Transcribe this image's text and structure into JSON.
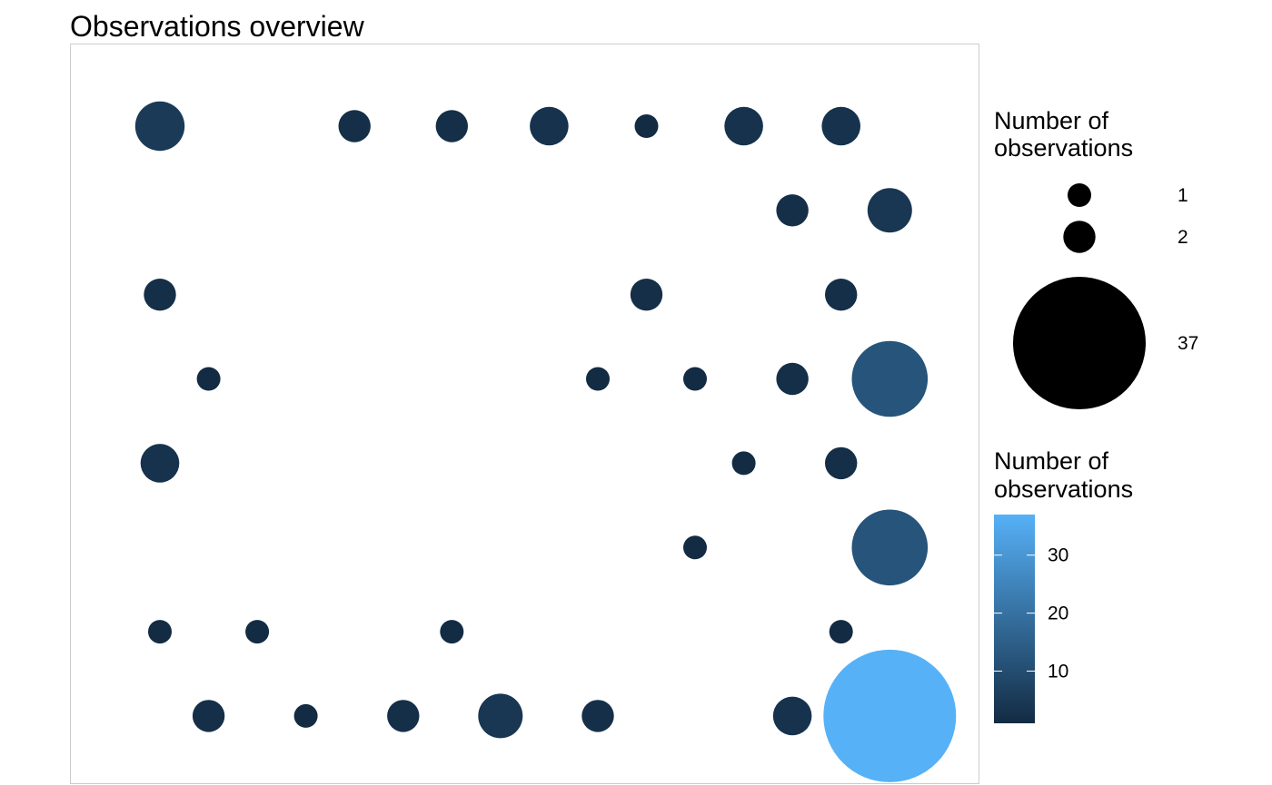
{
  "chart_data": {
    "type": "scatter",
    "title": "Observations overview",
    "xlabel": "",
    "ylabel": "",
    "grid": false,
    "legend_position": "right",
    "size_legend": {
      "title_lines": [
        "Number of",
        "observations"
      ],
      "entries": [
        1,
        2,
        37
      ]
    },
    "color_legend": {
      "title_lines": [
        "Number of",
        "observations"
      ],
      "ticks": [
        10,
        20,
        30
      ],
      "range": [
        1,
        37
      ],
      "low_color": "#132B43",
      "high_color": "#56B1F7"
    },
    "points": [
      {
        "col": 1,
        "row": 1,
        "n": 5
      },
      {
        "col": 5,
        "row": 1,
        "n": 2
      },
      {
        "col": 7,
        "row": 1,
        "n": 2
      },
      {
        "col": 9,
        "row": 1,
        "n": 3
      },
      {
        "col": 11,
        "row": 1,
        "n": 1
      },
      {
        "col": 13,
        "row": 1,
        "n": 3
      },
      {
        "col": 15,
        "row": 1,
        "n": 3
      },
      {
        "col": 14,
        "row": 2,
        "n": 2
      },
      {
        "col": 16,
        "row": 2,
        "n": 4
      },
      {
        "col": 1,
        "row": 3,
        "n": 2
      },
      {
        "col": 11,
        "row": 3,
        "n": 2
      },
      {
        "col": 15,
        "row": 3,
        "n": 2
      },
      {
        "col": 2,
        "row": 4,
        "n": 1
      },
      {
        "col": 10,
        "row": 4,
        "n": 1
      },
      {
        "col": 12,
        "row": 4,
        "n": 1
      },
      {
        "col": 14,
        "row": 4,
        "n": 2
      },
      {
        "col": 16,
        "row": 4,
        "n": 12
      },
      {
        "col": 1,
        "row": 5,
        "n": 3
      },
      {
        "col": 13,
        "row": 5,
        "n": 1
      },
      {
        "col": 15,
        "row": 5,
        "n": 2
      },
      {
        "col": 12,
        "row": 6,
        "n": 1
      },
      {
        "col": 16,
        "row": 6,
        "n": 12
      },
      {
        "col": 1,
        "row": 7,
        "n": 1
      },
      {
        "col": 3,
        "row": 7,
        "n": 1
      },
      {
        "col": 7,
        "row": 7,
        "n": 1
      },
      {
        "col": 15,
        "row": 7,
        "n": 1
      },
      {
        "col": 2,
        "row": 8,
        "n": 2
      },
      {
        "col": 4,
        "row": 8,
        "n": 1
      },
      {
        "col": 6,
        "row": 8,
        "n": 2
      },
      {
        "col": 8,
        "row": 8,
        "n": 4
      },
      {
        "col": 10,
        "row": 8,
        "n": 2
      },
      {
        "col": 14,
        "row": 8,
        "n": 3
      },
      {
        "col": 16,
        "row": 8,
        "n": 37
      }
    ]
  }
}
